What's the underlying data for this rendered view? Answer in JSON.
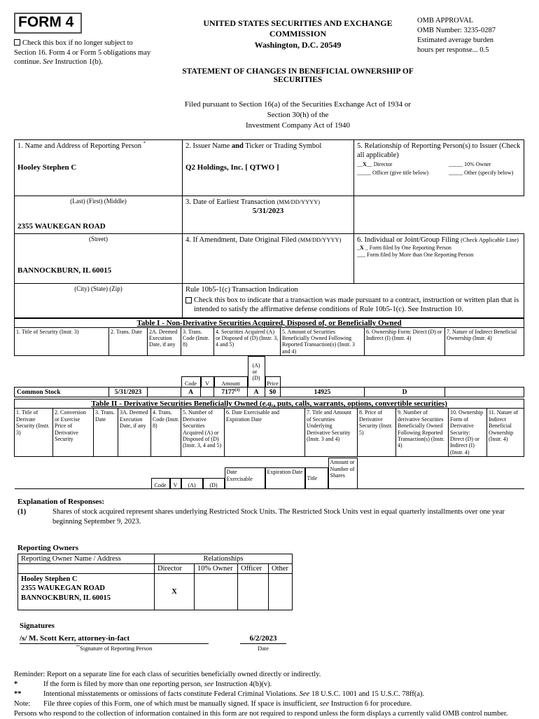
{
  "form": {
    "label": "FORM 4",
    "checkbox_note": [
      {
        "t": "Check this box if no longer subject to Section 16. Form 4 or Form 5 obligations may continue. "
      },
      {
        "t": "See",
        "i": true
      },
      {
        "t": " Instruction 1(b)."
      }
    ]
  },
  "header": {
    "commission": "UNITED STATES SECURITIES AND EXCHANGE COMMISSION",
    "address": "Washington, D.C. 20549",
    "statement_title": "STATEMENT OF CHANGES IN BENEFICIAL OWNERSHIP OF SECURITIES",
    "filed_pursuant_line1": "Filed pursuant to Section 16(a) of the Securities Exchange Act of 1934 or Section 30(h) of the",
    "filed_pursuant_line2": "Investment Company Act of 1940",
    "omb": {
      "title": "OMB APPROVAL",
      "number": "OMB Number: 3235-0287",
      "burden_line1": "Estimated average burden",
      "burden_line2": "hours per response... 0.5"
    }
  },
  "identity": {
    "reporting_person": {
      "label": [
        {
          "t": "1. Name and Address of Reporting Person "
        },
        {
          "t": "*",
          "sup": true
        }
      ],
      "name": "Hooley Stephen C",
      "name_hint": "(Last) (First) (Middle)",
      "street": "2355 WAUKEGAN ROAD",
      "street_hint": "(Street)",
      "city_state_zip": "BANNOCKBURN, IL 60015",
      "city_hint": "(City) (State) (Zip)"
    },
    "issuer": {
      "label": [
        {
          "t": "2. Issuer Name "
        },
        {
          "t": "and",
          "b": true
        },
        {
          "t": " Ticker or Trading Symbol"
        }
      ],
      "name": "Q2 Holdings, Inc. [ QTWO ]"
    },
    "earliest_transaction": {
      "label": [
        {
          "t": "3. Date of Earliest Transaction "
        },
        {
          "t": "(MM/DD/YYYY)",
          "small": true
        }
      ],
      "date": "5/31/2023"
    },
    "amendment": {
      "label": [
        {
          "t": "4. If Amendment, Date Original Filed "
        },
        {
          "t": "(MM/DD/YYYY)",
          "small": true
        }
      ]
    },
    "relationship": {
      "label": "5. Relationship of Reporting Person(s) to Issuer (Check all applicable)",
      "director": [
        {
          "t": "__"
        },
        {
          "t": "X",
          "b": true
        },
        {
          "t": "__ Director"
        }
      ],
      "ten_percent_owner": "_____ 10% Owner",
      "officer": "_____ Officer (give title below)",
      "other": "_____ Other (specify below)"
    },
    "filing_type": {
      "label": [
        {
          "t": "6. Individual or Joint/Group Filing "
        },
        {
          "t": "(Check Applicable Line)",
          "small": true
        }
      ],
      "one_person": [
        {
          "t": "_"
        },
        {
          "t": "X",
          "b": true
        },
        {
          "t": " _ Form filed by One Reporting Person"
        }
      ],
      "more_persons": "___ Form filed by More than One Reporting Person"
    },
    "rule_10b5_1": {
      "title": "Rule 10b5-1(c) Transaction Indication",
      "check_text": "Check this box to indicate that a transaction was made pursuant to a contract, instruction or written plan that is intended to satisfy the affirmative defense conditions of Rule 10b5-1(c). See Instruction 10."
    }
  },
  "table1": {
    "title": "Table I - Non-Derivative Securities Acquired, Disposed of, or Beneficially Owned",
    "headers": {
      "c1": "1. Title of Security (Instr. 3)",
      "c2": "2. Trans. Date",
      "c2a": "2A. Deemed Execution Date, if any",
      "c3": "3. Trans. Code (Instr. 8)",
      "c4": "4. Securities Acquired (A) or Disposed of (D) (Instr. 3, 4 and 5)",
      "c5": "5. Amount of Securities Beneficially Owned Following Reported Transaction(s) (Instr. 3 and 4)",
      "c6": "6. Ownership Form: Direct (D) or Indirect (I) (Instr. 4)",
      "c7": "7. Nature of Indirect Beneficial Ownership (Instr. 4)"
    },
    "sub": {
      "code": "Code",
      "v": "V",
      "amount": "Amount",
      "a_or_d": "(A)\nor\n(D)",
      "price": "Price"
    },
    "row": {
      "security_title": "Common Stock",
      "trans_date": "5/31/2023",
      "deemed_date": "",
      "code": "A",
      "v": "",
      "amount": [
        {
          "t": "7177"
        },
        {
          "t": "(1)",
          "sup": true
        }
      ],
      "a_or_d": "A",
      "price": "$0",
      "owned_following": "14925",
      "ownership_form": "D",
      "nature_indirect": ""
    }
  },
  "table2": {
    "title": [
      {
        "t": "Table II - Derivative Securities Beneficially Owned ("
      },
      {
        "t": "e.g.",
        "i": true
      },
      {
        "t": ", puts, calls, warrants, options, convertible securities)"
      }
    ],
    "headers": {
      "c1": "1. Title of Derivate Security (Instr. 3)",
      "c2": "2. Conversion or Exercise Price of Derivative Security",
      "c3": "3. Trans. Date",
      "c3a": "3A. Deemed Execution Date, if any",
      "c4": "4. Trans. Code (Instr. 8)",
      "c5": "5. Number of Derivative Securities Acquired (A) or Disposed of (D) (Instr. 3, 4 and 5)",
      "c6": "6. Date Exercisable and Expiration Date",
      "c7": "7. Title and Amount of Securities Underlying Derivative Security (Instr. 3 and 4)",
      "c8": "8. Price of Derivative Security (Instr. 5)",
      "c9": "9. Number of derivative Securities Beneficially Owned Following Reported Transaction(s) (Instr. 4)",
      "c10": "10. Ownership Form of Derivative Security: Direct (D) or Indirect (I) (Instr. 4)",
      "c11": "11. Nature of Indirect Beneficial Ownership (Instr. 4)"
    },
    "sub": {
      "code": "Code",
      "v": "V",
      "a": "(A)",
      "d": "(D)",
      "date_exercisable": "Date Exercisable",
      "expiration_date": "Expiration Date",
      "title": "Title",
      "amount_or_number": "Amount or Number of Shares"
    }
  },
  "explanation": {
    "heading": "Explanation of Responses:",
    "items": [
      {
        "marker": "(1)",
        "text": "Shares of stock acquired represent shares underlying Restricted Stock Units. The Restricted Stock Units vest in equal quarterly installments over one year beginning September 9, 2023."
      }
    ]
  },
  "reporting_owners": {
    "heading": "Reporting Owners",
    "owner_col": "Reporting Owner Name / Address",
    "relationships_col": "Relationships",
    "rel_cols": [
      "Director",
      "10% Owner",
      "Officer",
      "Other"
    ],
    "rows": [
      {
        "name_lines": [
          "Hooley Stephen C",
          "2355 WAUKEGAN ROAD",
          "BANNOCKBURN, IL 60015"
        ],
        "director": "X",
        "ten_percent": "",
        "officer": "",
        "other": ""
      }
    ]
  },
  "signatures": {
    "heading": "Signatures",
    "signature": "/s/ M. Scott Kerr, attorney-in-fact",
    "signature_label": [
      {
        "t": "**",
        "sup": true
      },
      {
        "t": "Signature of Reporting Person"
      }
    ],
    "date": "6/2/2023",
    "date_label": "Date"
  },
  "footer": {
    "reminder": "Reminder: Report on a separate line for each class of securities beneficially owned directly or indirectly.",
    "notes": [
      {
        "marker": "*",
        "text": [
          {
            "t": "If the form is filed by more than one reporting person, "
          },
          {
            "t": "see",
            "i": true
          },
          {
            "t": " Instruction 4(b)(v)."
          }
        ]
      },
      {
        "marker": "**",
        "text": [
          {
            "t": "Intentional misstatements or omissions of facts constitute Federal Criminal Violations. "
          },
          {
            "t": "See",
            "i": true
          },
          {
            "t": " 18 U.S.C. 1001 and 15 U.S.C. 78ff(a)."
          }
        ]
      },
      {
        "marker": "Note:",
        "text": [
          {
            "t": "File three copies of this Form, one of which must be manually signed. If space is insufficient, "
          },
          {
            "t": "see",
            "i": true
          },
          {
            "t": " Instruction 6 for procedure."
          }
        ]
      }
    ],
    "persons_note": "Persons who respond to the collection of information contained in this form are not required to respond unless the form displays a currently valid OMB control number."
  }
}
